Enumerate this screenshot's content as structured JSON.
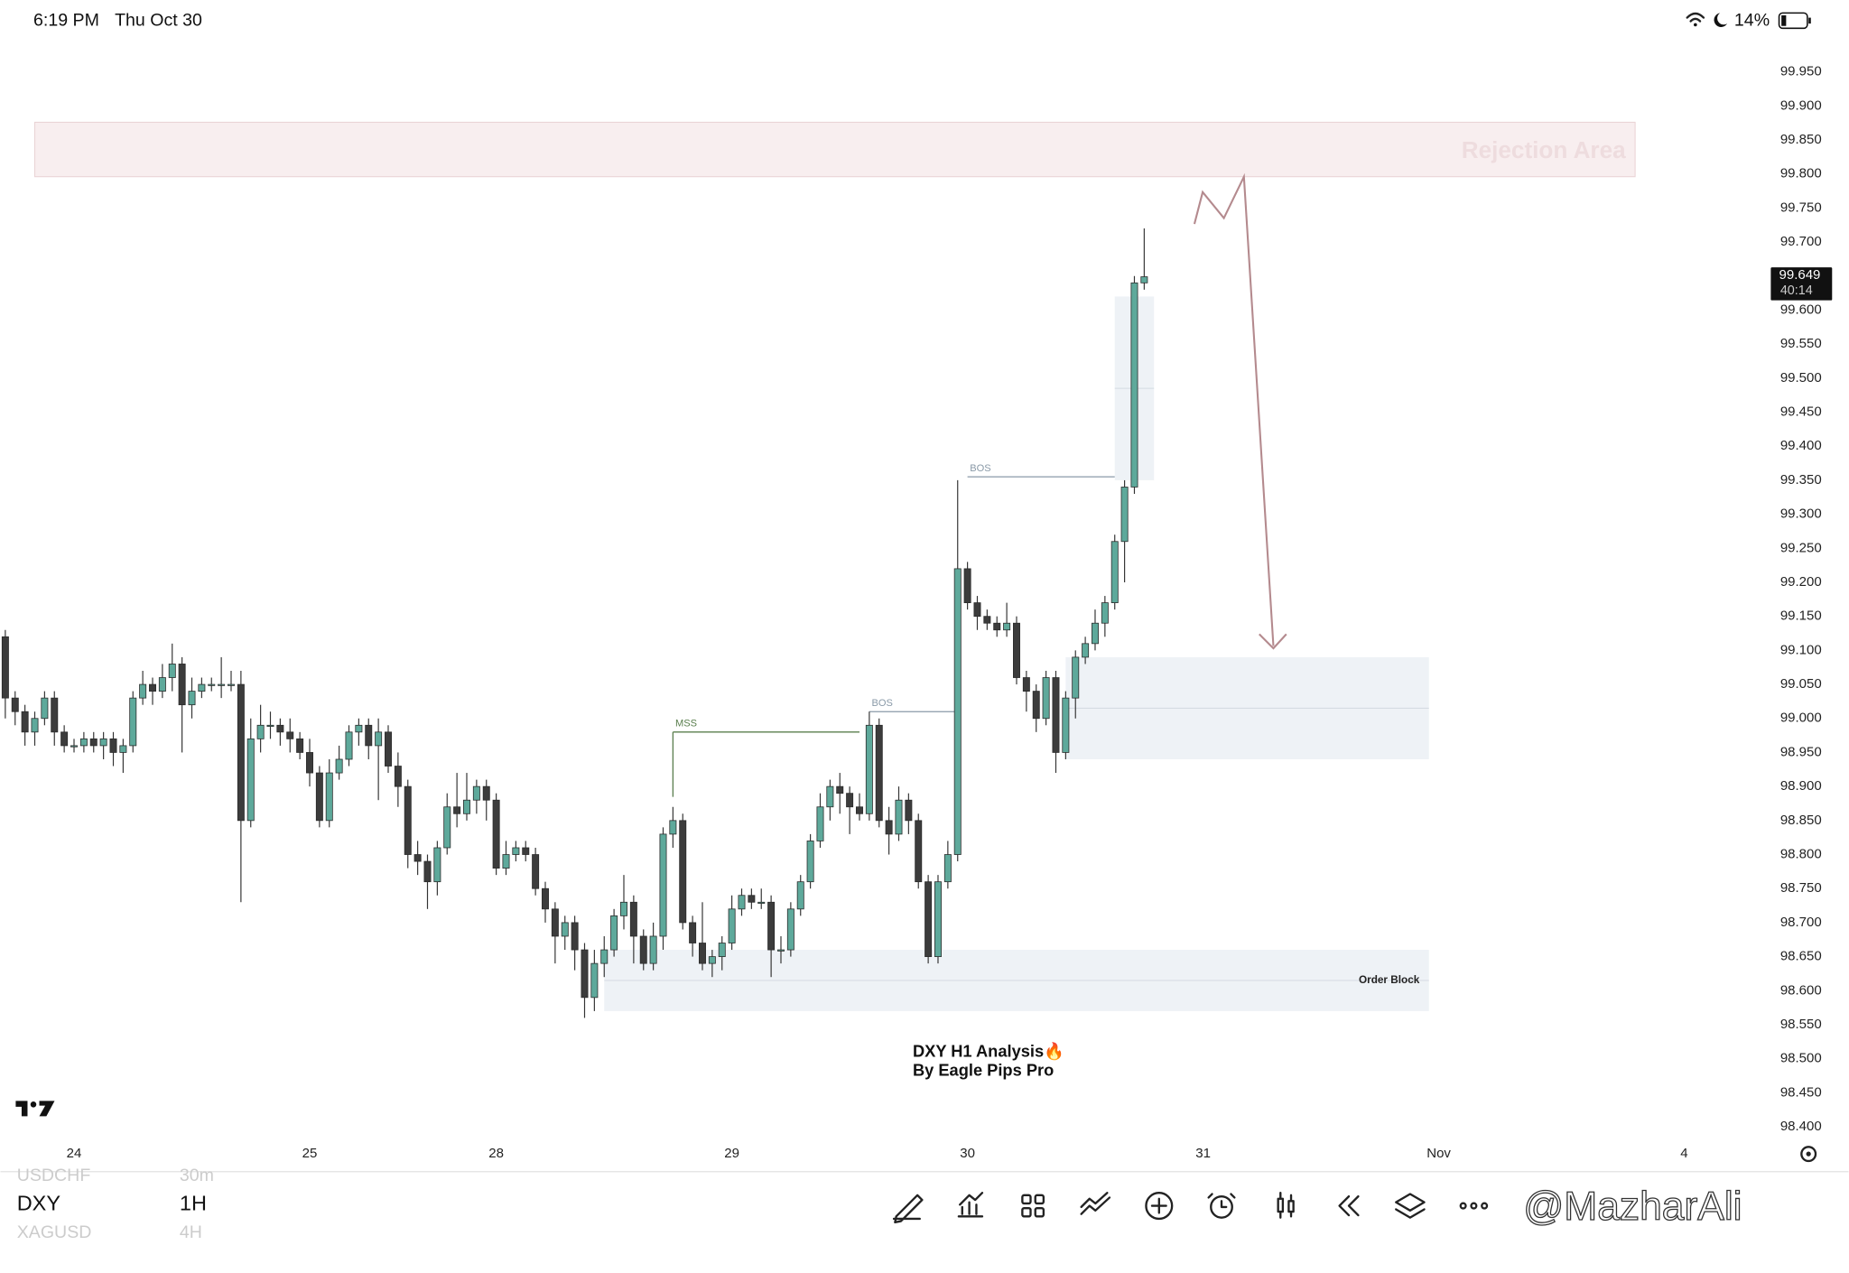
{
  "status_bar": {
    "time": "6:19 PM",
    "date": "Thu Oct 30",
    "battery": "14%"
  },
  "chart_data": {
    "type": "candlestick",
    "symbol": "DXY",
    "interval": "1H",
    "watermark": [
      "DXY H1 Analysis🔥",
      "By Eagle Pips Pro"
    ],
    "last_price": 99.649,
    "countdown": "40:14",
    "xlim": [
      -0.5,
      178.5
    ],
    "xticks": [
      {
        "value": 7,
        "label": "24"
      },
      {
        "value": 31,
        "label": "25"
      },
      {
        "value": 50,
        "label": "28"
      },
      {
        "value": 74,
        "label": "29"
      },
      {
        "value": 98,
        "label": "30"
      },
      {
        "value": 122,
        "label": "31"
      },
      {
        "value": 146,
        "label": "Nov"
      },
      {
        "value": 171,
        "label": "4"
      }
    ],
    "ylim": [
      98.38,
      99.99
    ],
    "yticks": [
      {
        "value": 99.95,
        "label": "99.950"
      },
      {
        "value": 99.9,
        "label": "99.900"
      },
      {
        "value": 99.85,
        "label": "99.850"
      },
      {
        "value": 99.8,
        "label": "99.800"
      },
      {
        "value": 99.75,
        "label": "99.750"
      },
      {
        "value": 99.7,
        "label": "99.700"
      },
      {
        "value": 99.65,
        "label": "99.650"
      },
      {
        "value": 99.6,
        "label": "99.600"
      },
      {
        "value": 99.55,
        "label": "99.550"
      },
      {
        "value": 99.5,
        "label": "99.500"
      },
      {
        "value": 99.45,
        "label": "99.450"
      },
      {
        "value": 99.4,
        "label": "99.400"
      },
      {
        "value": 99.35,
        "label": "99.350"
      },
      {
        "value": 99.3,
        "label": "99.300"
      },
      {
        "value": 99.25,
        "label": "99.250"
      },
      {
        "value": 99.2,
        "label": "99.200"
      },
      {
        "value": 99.15,
        "label": "99.150"
      },
      {
        "value": 99.1,
        "label": "99.100"
      },
      {
        "value": 99.05,
        "label": "99.050"
      },
      {
        "value": 99,
        "label": "99.000"
      },
      {
        "value": 98.95,
        "label": "98.950"
      },
      {
        "value": 98.9,
        "label": "98.900"
      },
      {
        "value": 98.85,
        "label": "98.850"
      },
      {
        "value": 98.8,
        "label": "98.800"
      },
      {
        "value": 98.75,
        "label": "98.750"
      },
      {
        "value": 98.7,
        "label": "98.700"
      },
      {
        "value": 98.65,
        "label": "98.650"
      },
      {
        "value": 98.6,
        "label": "98.600"
      },
      {
        "value": 98.55,
        "label": "98.550"
      },
      {
        "value": 98.5,
        "label": "98.500"
      },
      {
        "value": 98.45,
        "label": "98.450"
      },
      {
        "value": 98.4,
        "label": "98.400"
      }
    ],
    "up_color": "#5ea99b",
    "down_color": "#3c3c3c",
    "open": [
      99.12,
      99.03,
      99.01,
      98.98,
      99.0,
      99.03,
      98.98,
      98.96,
      98.96,
      98.97,
      98.96,
      98.97,
      98.95,
      98.96,
      99.03,
      99.05,
      99.04,
      99.06,
      99.08,
      99.02,
      99.04,
      99.05,
      99.05,
      99.05,
      99.05,
      98.85,
      98.97,
      98.99,
      98.99,
      98.98,
      98.97,
      98.95,
      98.92,
      98.85,
      98.92,
      98.94,
      98.98,
      98.99,
      98.96,
      98.98,
      98.93,
      98.9,
      98.8,
      98.79,
      98.76,
      98.81,
      98.87,
      98.86,
      98.88,
      98.9,
      98.88,
      98.78,
      98.8,
      98.81,
      98.8,
      98.75,
      98.72,
      98.68,
      98.7,
      98.66,
      98.59,
      98.64,
      98.66,
      98.71,
      98.73,
      98.68,
      98.64,
      98.68,
      98.83,
      98.85,
      98.7,
      98.67,
      98.64,
      98.65,
      98.67,
      98.72,
      98.74,
      98.73,
      98.73,
      98.66,
      98.66,
      98.72,
      98.76,
      98.82,
      98.87,
      98.9,
      98.89,
      98.87,
      98.86,
      98.99,
      98.85,
      98.83,
      98.88,
      98.85,
      98.76,
      98.65,
      98.76,
      98.8,
      99.22,
      99.17,
      99.15,
      99.14,
      99.13,
      99.14,
      99.06,
      99.04,
      99.0,
      99.06,
      98.95,
      99.03,
      99.09,
      99.11,
      99.14,
      99.17,
      99.26,
      99.34,
      99.64
    ],
    "high": [
      99.13,
      99.04,
      99.02,
      99.01,
      99.04,
      99.04,
      98.99,
      98.97,
      98.98,
      98.98,
      98.98,
      98.98,
      98.97,
      99.04,
      99.07,
      99.06,
      99.08,
      99.11,
      99.09,
      99.06,
      99.06,
      99.06,
      99.09,
      99.07,
      99.07,
      99.0,
      99.02,
      99.01,
      99.0,
      99.0,
      98.98,
      98.97,
      98.93,
      98.94,
      98.96,
      98.99,
      99.0,
      99.0,
      99.0,
      98.99,
      98.95,
      98.91,
      98.82,
      98.8,
      98.82,
      98.89,
      98.92,
      98.92,
      98.91,
      98.91,
      98.89,
      98.82,
      98.82,
      98.82,
      98.81,
      98.76,
      98.73,
      98.71,
      98.71,
      98.67,
      98.66,
      98.68,
      98.72,
      98.77,
      98.74,
      98.69,
      98.7,
      98.84,
      98.87,
      98.86,
      98.71,
      98.73,
      98.66,
      98.68,
      98.74,
      98.75,
      98.75,
      98.75,
      98.74,
      98.68,
      98.73,
      98.77,
      98.83,
      98.89,
      98.91,
      98.92,
      98.9,
      98.89,
      99.01,
      99.0,
      98.87,
      98.9,
      98.89,
      98.86,
      98.77,
      98.77,
      98.82,
      99.35,
      99.23,
      99.18,
      99.16,
      99.15,
      99.17,
      99.15,
      99.07,
      99.05,
      99.07,
      99.07,
      99.04,
      99.1,
      99.12,
      99.16,
      99.18,
      99.27,
      99.35,
      99.65,
      99.72
    ],
    "low": [
      99.0,
      98.99,
      98.96,
      98.96,
      98.99,
      98.96,
      98.95,
      98.95,
      98.95,
      98.95,
      98.94,
      98.93,
      98.92,
      98.95,
      99.02,
      99.02,
      99.03,
      99.04,
      98.95,
      99.0,
      99.03,
      99.04,
      99.03,
      99.04,
      98.73,
      98.84,
      98.95,
      98.97,
      98.96,
      98.95,
      98.94,
      98.9,
      98.84,
      98.84,
      98.91,
      98.93,
      98.96,
      98.94,
      98.88,
      98.92,
      98.87,
      98.78,
      98.77,
      98.72,
      98.74,
      98.8,
      98.84,
      98.85,
      98.86,
      98.85,
      98.77,
      98.77,
      98.79,
      98.79,
      98.74,
      98.7,
      98.64,
      98.66,
      98.63,
      98.56,
      98.57,
      98.62,
      98.65,
      98.69,
      98.64,
      98.63,
      98.63,
      98.66,
      98.81,
      98.69,
      98.65,
      98.63,
      98.62,
      98.63,
      98.66,
      98.71,
      98.72,
      98.72,
      98.62,
      98.64,
      98.65,
      98.71,
      98.75,
      98.81,
      98.85,
      98.86,
      98.83,
      98.85,
      98.85,
      98.84,
      98.8,
      98.82,
      98.83,
      98.75,
      98.64,
      98.64,
      98.75,
      98.79,
      99.16,
      99.13,
      99.13,
      99.12,
      99.12,
      99.05,
      99.01,
      98.98,
      98.99,
      98.92,
      98.94,
      99.0,
      99.08,
      99.1,
      99.12,
      99.16,
      99.2,
      99.33,
      99.63
    ],
    "close": [
      99.03,
      99.01,
      98.98,
      99.0,
      99.03,
      98.98,
      98.96,
      98.96,
      98.97,
      98.96,
      98.97,
      98.95,
      98.96,
      99.03,
      99.05,
      99.04,
      99.06,
      99.08,
      99.02,
      99.04,
      99.05,
      99.05,
      99.05,
      99.05,
      98.85,
      98.97,
      98.99,
      98.99,
      98.98,
      98.97,
      98.95,
      98.92,
      98.85,
      98.92,
      98.94,
      98.98,
      98.99,
      98.96,
      98.98,
      98.93,
      98.9,
      98.8,
      98.79,
      98.76,
      98.81,
      98.87,
      98.86,
      98.88,
      98.9,
      98.88,
      98.78,
      98.8,
      98.81,
      98.8,
      98.75,
      98.72,
      98.68,
      98.7,
      98.66,
      98.59,
      98.64,
      98.66,
      98.71,
      98.73,
      98.68,
      98.64,
      98.68,
      98.83,
      98.85,
      98.7,
      98.67,
      98.64,
      98.65,
      98.67,
      98.72,
      98.74,
      98.73,
      98.73,
      98.66,
      98.66,
      98.72,
      98.76,
      98.82,
      98.87,
      98.9,
      98.89,
      98.87,
      98.86,
      98.99,
      98.85,
      98.83,
      98.88,
      98.85,
      98.76,
      98.65,
      98.76,
      98.8,
      99.22,
      99.17,
      99.15,
      99.14,
      99.13,
      99.14,
      99.06,
      99.04,
      99.0,
      99.06,
      98.95,
      99.03,
      99.09,
      99.11,
      99.14,
      99.17,
      99.26,
      99.34,
      99.64,
      99.649
    ],
    "zones": [
      {
        "label": "Rejection Area",
        "x": [
          3,
          166
        ],
        "y": [
          99.796,
          99.876
        ]
      },
      {
        "label": "Order Block",
        "x": [
          61,
          145
        ],
        "y": [
          98.57,
          98.66
        ]
      },
      {
        "x": [
          108,
          145
        ],
        "y": [
          98.94,
          99.09
        ]
      },
      {
        "x": [
          113,
          117
        ],
        "y": [
          99.35,
          99.62
        ]
      }
    ],
    "levels": [
      {
        "label": "MSS",
        "x": [
          68,
          87
        ],
        "y": 98.98
      },
      {
        "label": "BOS",
        "x": [
          88,
          97
        ],
        "y": 99.01
      },
      {
        "label": "BOS",
        "x": [
          98,
          113
        ],
        "y": 99.355
      }
    ]
  },
  "bottom_bar": {
    "symbols": [
      {
        "symbol": "USDCHF",
        "interval": "30m"
      },
      {
        "symbol": "DXY",
        "interval": "1H"
      },
      {
        "symbol": "XAGUSD",
        "interval": "4H"
      }
    ],
    "handle": "@MazharAli"
  }
}
